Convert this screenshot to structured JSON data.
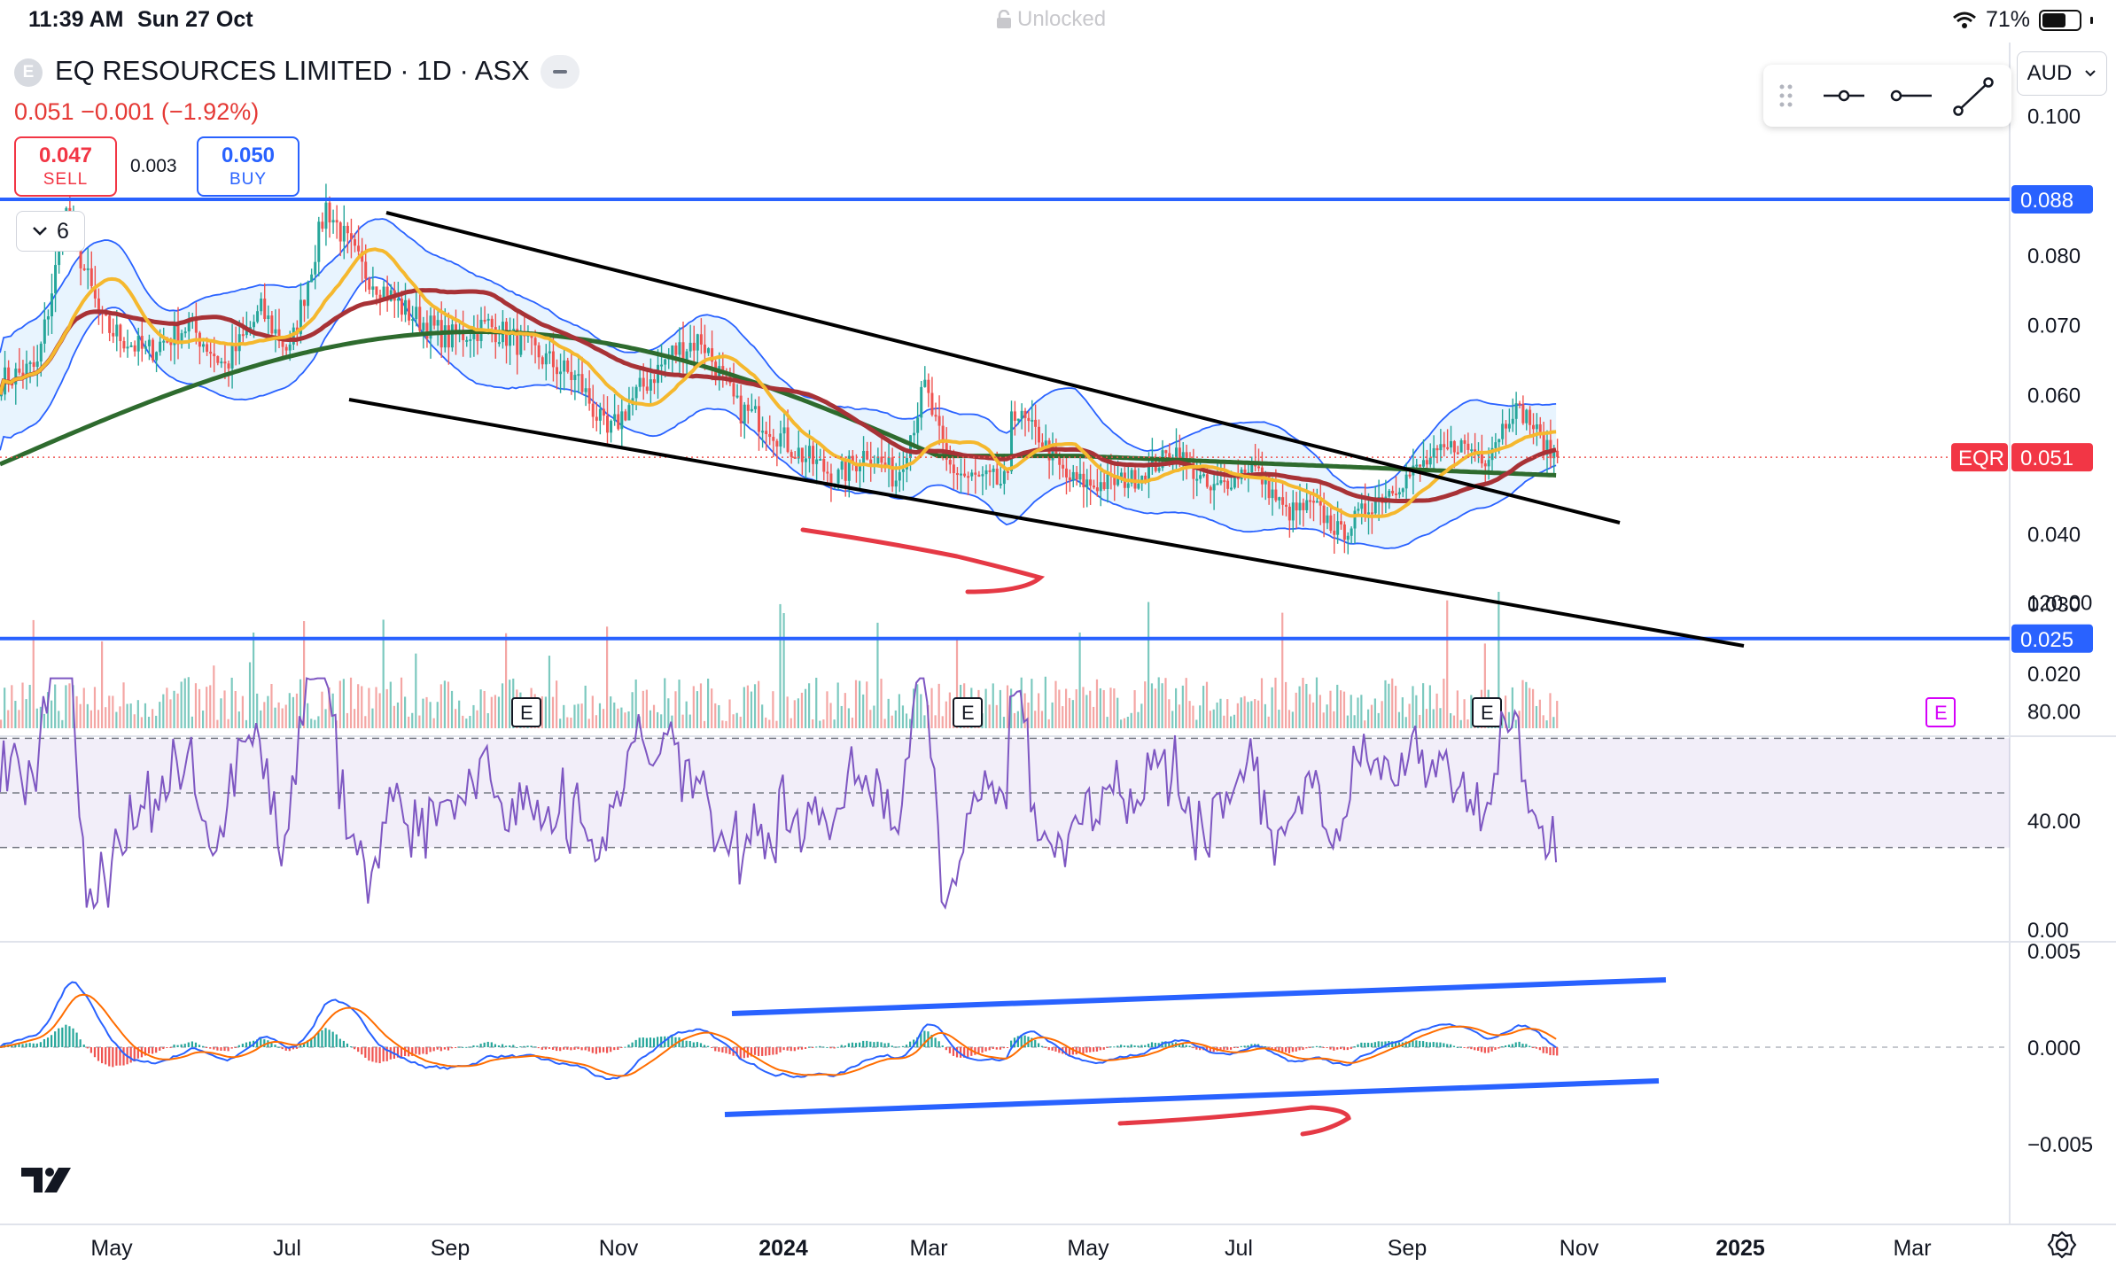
{
  "status_bar": {
    "time": "11:39 AM",
    "date": "Sun 27 Oct",
    "lock_label": "Unlocked",
    "battery": "71%",
    "battery_level": 0.71
  },
  "header": {
    "badge": "E",
    "title": "EQ RESOURCES LIMITED · 1D · ASX",
    "price_change": "0.051  −0.001 (−1.92%)",
    "sell_price": "0.047",
    "sell_label": "SELL",
    "spread": "0.003",
    "buy_price": "0.050",
    "buy_label": "BUY",
    "indicators_count": "6",
    "currency": "AUD"
  },
  "colors": {
    "accent_blue": "#2962ff",
    "down_red": "#ef5350",
    "up_green": "#26a69a",
    "ma_fast": "#f5b82e",
    "ma_mid": "#a83236",
    "ma_slow": "#2e6b2e",
    "rsi_line": "#7e57c2",
    "macd_line": "#2962ff",
    "signal_line": "#ff6d00"
  },
  "chart_data": [
    {
      "type": "candlestick",
      "title": "EQ RESOURCES LIMITED · 1D · ASX",
      "y_axis_ticks": [
        "0.100",
        "0.080",
        "0.070",
        "0.060",
        "0.040",
        "0.030",
        "0.020"
      ],
      "ylim": [
        0.0,
        0.1
      ],
      "x_axis_ticks": [
        "May",
        "Jul",
        "Sep",
        "Nov",
        "2024",
        "Mar",
        "May",
        "Jul",
        "Sep",
        "Nov",
        "2025",
        "Mar"
      ],
      "last_price": 0.051,
      "symbol_tag": "EQR",
      "horizontal_lines": [
        {
          "value": 0.088,
          "label": "0.088",
          "color": "#2962ff"
        },
        {
          "value": 0.025,
          "label": "0.025",
          "color": "#2962ff"
        }
      ],
      "trendlines": [
        {
          "name": "upper-wedge",
          "from": [
            "2023-08",
            0.088
          ],
          "to": [
            "2024-11",
            0.043
          ]
        },
        {
          "name": "lower-wedge",
          "from": [
            "2023-07",
            0.061
          ],
          "to": [
            "2025-01",
            0.026
          ]
        }
      ],
      "earnings_markers": [
        "E",
        "E",
        "E",
        "E"
      ],
      "grid": true
    },
    {
      "type": "line",
      "name": "RSI",
      "y_axis_ticks": [
        "120.00",
        "80.00",
        "40.00",
        "0.00"
      ],
      "ylim": [
        0,
        120
      ],
      "band": [
        30,
        70
      ]
    },
    {
      "type": "line",
      "name": "MACD",
      "y_axis_ticks": [
        "0.005",
        "0.000",
        "−0.005"
      ],
      "ylim": [
        -0.006,
        0.005
      ]
    }
  ]
}
